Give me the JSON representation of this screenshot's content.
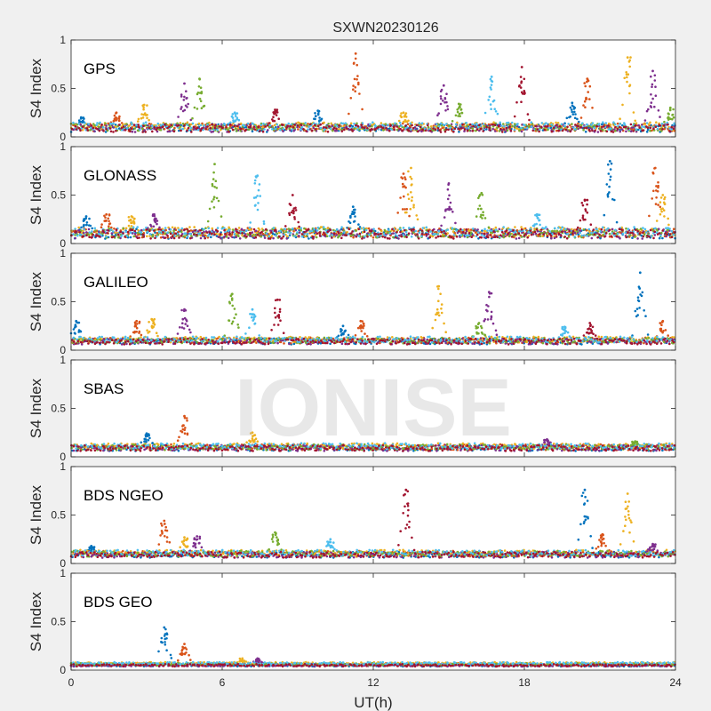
{
  "figure": {
    "title": "SXWN20230126",
    "xlabel": "UT(h)",
    "ylabel": "S4 Index",
    "watermark": "IONISE"
  },
  "chart_data": {
    "type": "scatter",
    "x_range": [
      0,
      24
    ],
    "y_range": [
      0,
      1
    ],
    "x_ticks": [
      0,
      6,
      12,
      18,
      24
    ],
    "y_ticks": [
      0,
      0.5,
      1
    ],
    "grid": false,
    "series_colors": [
      "#0072BD",
      "#D95319",
      "#EDB120",
      "#7E2F8E",
      "#77AC30",
      "#4DBEEE",
      "#A2142F"
    ],
    "panels": [
      {
        "label": "GPS",
        "baseline": 0.1,
        "noise": 0.04,
        "spikes": [
          {
            "x": 0.4,
            "peak": 0.2
          },
          {
            "x": 1.8,
            "peak": 0.25
          },
          {
            "x": 2.9,
            "peak": 0.33
          },
          {
            "x": 4.5,
            "peak": 0.55
          },
          {
            "x": 5.1,
            "peak": 0.6
          },
          {
            "x": 6.5,
            "peak": 0.25
          },
          {
            "x": 8.1,
            "peak": 0.28
          },
          {
            "x": 9.8,
            "peak": 0.27
          },
          {
            "x": 11.3,
            "peak": 0.86
          },
          {
            "x": 13.2,
            "peak": 0.25
          },
          {
            "x": 14.8,
            "peak": 0.53
          },
          {
            "x": 15.4,
            "peak": 0.34
          },
          {
            "x": 16.7,
            "peak": 0.62
          },
          {
            "x": 17.9,
            "peak": 0.72
          },
          {
            "x": 19.9,
            "peak": 0.35
          },
          {
            "x": 20.5,
            "peak": 0.6
          },
          {
            "x": 22.1,
            "peak": 0.82
          },
          {
            "x": 23.1,
            "peak": 0.68
          },
          {
            "x": 23.8,
            "peak": 0.3
          }
        ]
      },
      {
        "label": "GLONASS",
        "baseline": 0.11,
        "noise": 0.05,
        "spikes": [
          {
            "x": 0.6,
            "peak": 0.28
          },
          {
            "x": 1.4,
            "peak": 0.3
          },
          {
            "x": 2.4,
            "peak": 0.28
          },
          {
            "x": 3.3,
            "peak": 0.3
          },
          {
            "x": 5.7,
            "peak": 0.82
          },
          {
            "x": 7.4,
            "peak": 0.7
          },
          {
            "x": 8.8,
            "peak": 0.5
          },
          {
            "x": 11.2,
            "peak": 0.38
          },
          {
            "x": 13.2,
            "peak": 0.72
          },
          {
            "x": 13.5,
            "peak": 0.78
          },
          {
            "x": 15.0,
            "peak": 0.62
          },
          {
            "x": 16.3,
            "peak": 0.52
          },
          {
            "x": 18.5,
            "peak": 0.3
          },
          {
            "x": 20.4,
            "peak": 0.45
          },
          {
            "x": 21.4,
            "peak": 0.85
          },
          {
            "x": 23.2,
            "peak": 0.78
          },
          {
            "x": 23.5,
            "peak": 0.5
          }
        ]
      },
      {
        "label": "GALILEO",
        "baseline": 0.1,
        "noise": 0.03,
        "spikes": [
          {
            "x": 0.2,
            "peak": 0.3
          },
          {
            "x": 2.6,
            "peak": 0.3
          },
          {
            "x": 3.2,
            "peak": 0.32
          },
          {
            "x": 4.5,
            "peak": 0.42
          },
          {
            "x": 6.4,
            "peak": 0.58
          },
          {
            "x": 7.2,
            "peak": 0.42
          },
          {
            "x": 8.2,
            "peak": 0.52
          },
          {
            "x": 10.8,
            "peak": 0.25
          },
          {
            "x": 11.5,
            "peak": 0.3
          },
          {
            "x": 14.6,
            "peak": 0.66
          },
          {
            "x": 16.6,
            "peak": 0.6
          },
          {
            "x": 16.2,
            "peak": 0.28
          },
          {
            "x": 19.6,
            "peak": 0.24
          },
          {
            "x": 20.6,
            "peak": 0.28
          },
          {
            "x": 22.6,
            "peak": 0.8
          },
          {
            "x": 23.5,
            "peak": 0.3
          }
        ]
      },
      {
        "label": "SBAS",
        "baseline": 0.1,
        "noise": 0.03,
        "spikes": [
          {
            "x": 3.0,
            "peak": 0.24
          },
          {
            "x": 4.5,
            "peak": 0.42
          },
          {
            "x": 7.2,
            "peak": 0.25
          },
          {
            "x": 18.9,
            "peak": 0.18
          },
          {
            "x": 22.4,
            "peak": 0.16
          }
        ]
      },
      {
        "label": "BDS NGEO",
        "baseline": 0.1,
        "noise": 0.03,
        "spikes": [
          {
            "x": 0.8,
            "peak": 0.18
          },
          {
            "x": 3.7,
            "peak": 0.44
          },
          {
            "x": 4.5,
            "peak": 0.27
          },
          {
            "x": 5.0,
            "peak": 0.28
          },
          {
            "x": 8.1,
            "peak": 0.32
          },
          {
            "x": 10.3,
            "peak": 0.25
          },
          {
            "x": 13.3,
            "peak": 0.76
          },
          {
            "x": 20.4,
            "peak": 0.76
          },
          {
            "x": 21.1,
            "peak": 0.3
          },
          {
            "x": 22.1,
            "peak": 0.72
          },
          {
            "x": 23.1,
            "peak": 0.2
          }
        ]
      },
      {
        "label": "BDS GEO",
        "baseline": 0.06,
        "noise": 0.012,
        "spikes": [
          {
            "x": 3.7,
            "peak": 0.44
          },
          {
            "x": 4.5,
            "peak": 0.27
          },
          {
            "x": 6.8,
            "peak": 0.12
          },
          {
            "x": 7.4,
            "peak": 0.12
          }
        ]
      }
    ]
  }
}
